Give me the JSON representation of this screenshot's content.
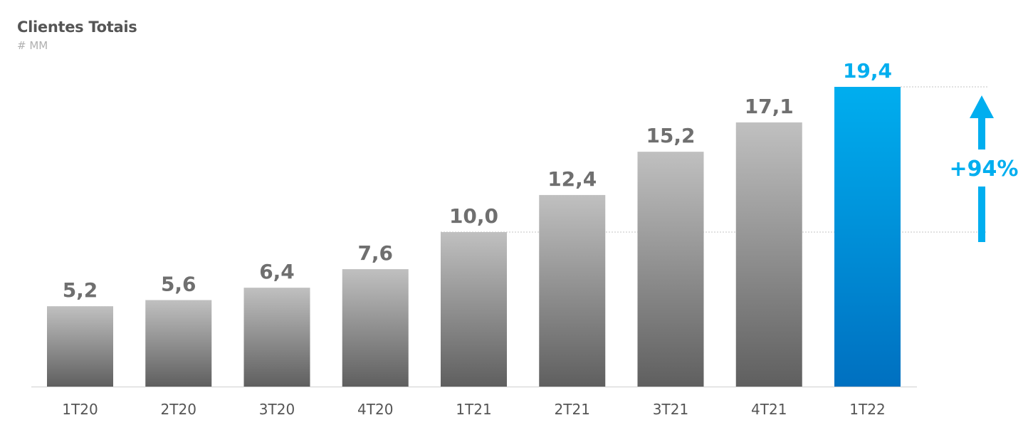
{
  "header": {
    "title": "Clientes Totais",
    "subtitle": "# MM"
  },
  "colors": {
    "bar_top": "#c0c0c0",
    "bar_bottom": "#5f5f5f",
    "highlight_top": "#00aeef",
    "highlight_bottom": "#0070c0",
    "label": "#6f6f6f",
    "highlight_label": "#00aeef",
    "axis": "#d0d0d0"
  },
  "chart_data": {
    "type": "bar",
    "title": "Clientes Totais",
    "subtitle": "# MM",
    "categories": [
      "1T20",
      "2T20",
      "3T20",
      "4T20",
      "1T21",
      "2T21",
      "3T21",
      "4T21",
      "1T22"
    ],
    "values": [
      5.2,
      5.6,
      6.4,
      7.6,
      10.0,
      12.4,
      15.2,
      17.1,
      19.4
    ],
    "value_labels": [
      "5,2",
      "5,6",
      "6,4",
      "7,6",
      "10,0",
      "12,4",
      "15,2",
      "17,1",
      "19,4"
    ],
    "highlight_index": 8,
    "ylim": [
      0,
      19.4
    ],
    "grid": false,
    "annotation": {
      "text": "+94%",
      "from_index": 4,
      "to_index": 8,
      "icon": "arrow-up-icon"
    }
  }
}
